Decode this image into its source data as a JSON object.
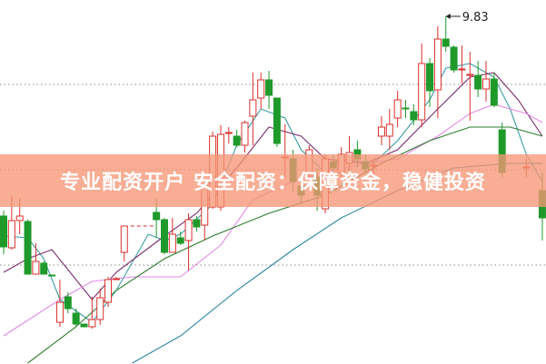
{
  "banner": {
    "text": "专业配资开户 安全配资：保障资金，稳健投资"
  },
  "chart_data": {
    "type": "candlestick",
    "title": "",
    "annotation": {
      "label": "9.83",
      "idx": 55,
      "price": 9.83
    },
    "grid": {
      "style": "dotted",
      "y_levels": [
        9.08,
        8.14,
        7.09
      ]
    },
    "ylim": [
      6.0,
      10.0
    ],
    "colors": {
      "up": "#d9302c",
      "down": "#1f9a2a",
      "ma5": "#3a9ea6",
      "ma10": "#7a2e6a",
      "ma20": "#e48ae4",
      "ma30": "#2d7d2d",
      "ma60": "#2a86a0"
    },
    "suspended_gap": [
      15,
      19
    ],
    "candles": [
      [
        0,
        7.63,
        7.29,
        7.69,
        7.21
      ],
      [
        1,
        7.28,
        7.58,
        7.86,
        7.26
      ],
      [
        2,
        7.58,
        7.63,
        7.83,
        7.43
      ],
      [
        3,
        7.57,
        6.99,
        7.59,
        6.99
      ],
      [
        4,
        6.99,
        7.13,
        7.33,
        6.99
      ],
      [
        5,
        7.11,
        6.99,
        7.13,
        6.99
      ],
      [
        6,
        6.98,
        6.975,
        6.98,
        6.97
      ],
      [
        7,
        6.46,
        6.68,
        6.93,
        6.41
      ],
      [
        8,
        6.74,
        6.61,
        6.79,
        6.56
      ],
      [
        9,
        6.56,
        6.44,
        6.61,
        6.41
      ],
      [
        10,
        6.44,
        6.41,
        6.44,
        6.41
      ],
      [
        11,
        6.41,
        6.49,
        6.74,
        6.39
      ],
      [
        12,
        6.49,
        6.73,
        6.83,
        6.43
      ],
      [
        13,
        6.68,
        6.93,
        6.96,
        6.63
      ],
      [
        14,
        6.93,
        6.94,
        6.96,
        6.93
      ],
      [
        15,
        7.23,
        7.52,
        7.52,
        7.13
      ],
      [
        19,
        7.67,
        7.59,
        7.83,
        7.39
      ],
      [
        20,
        7.59,
        7.23,
        7.61,
        7.21
      ],
      [
        21,
        7.23,
        7.43,
        7.61,
        7.23
      ],
      [
        22,
        7.39,
        7.33,
        7.46,
        7.31
      ],
      [
        23,
        7.36,
        7.59,
        7.66,
        7.03
      ],
      [
        24,
        7.59,
        7.51,
        7.63,
        7.46
      ],
      [
        25,
        7.53,
        7.96,
        7.96,
        7.36
      ],
      [
        26,
        7.73,
        8.51,
        8.56,
        7.71
      ],
      [
        27,
        7.73,
        8.53,
        8.63,
        7.69
      ],
      [
        28,
        8.54,
        8.55,
        8.61,
        8.43
      ],
      [
        29,
        8.51,
        8.41,
        8.58,
        8.39
      ],
      [
        30,
        8.41,
        8.66,
        8.68,
        8.33
      ],
      [
        31,
        8.73,
        8.91,
        9.21,
        8.41
      ],
      [
        32,
        8.93,
        9.13,
        9.21,
        8.81
      ],
      [
        33,
        9.13,
        8.96,
        9.23,
        8.81
      ],
      [
        34,
        8.93,
        8.43,
        8.93,
        8.39
      ],
      [
        35,
        8.27,
        8.28,
        8.64,
        8.06
      ],
      [
        36,
        8.26,
        8.01,
        8.36,
        7.89
      ],
      [
        37,
        7.96,
        7.86,
        8.06,
        7.76
      ],
      [
        38,
        8.09,
        8.36,
        8.41,
        8.01
      ],
      [
        39,
        8.06,
        7.86,
        8.16,
        7.69
      ],
      [
        40,
        7.71,
        8.26,
        8.31,
        7.66
      ],
      [
        41,
        8.23,
        8.16,
        8.31,
        8.13
      ],
      [
        42,
        8.11,
        8.31,
        8.39,
        8.06
      ],
      [
        43,
        8.21,
        8.33,
        8.51,
        8.13
      ],
      [
        44,
        8.36,
        8.26,
        8.46,
        8.16
      ],
      [
        45,
        8.23,
        8.15,
        8.31,
        8.09
      ],
      [
        46,
        8.18,
        8.19,
        8.26,
        8.09
      ],
      [
        47,
        8.51,
        8.61,
        8.73,
        8.41
      ],
      [
        48,
        8.51,
        8.64,
        8.81,
        8.36
      ],
      [
        49,
        8.71,
        8.91,
        9.01,
        8.61
      ],
      [
        50,
        8.82,
        8.81,
        8.91,
        8.71
      ],
      [
        51,
        8.78,
        8.69,
        8.86,
        8.63
      ],
      [
        52,
        8.69,
        9.31,
        9.53,
        8.61
      ],
      [
        53,
        9.31,
        9.01,
        9.37,
        8.83
      ],
      [
        54,
        9.02,
        9.58,
        9.72,
        8.71
      ],
      [
        55,
        9.58,
        9.5,
        9.83,
        9.44
      ],
      [
        56,
        9.49,
        9.24,
        9.51,
        9.21
      ],
      [
        57,
        9.24,
        9.25,
        9.51,
        9.09
      ],
      [
        58,
        9.18,
        9.19,
        9.44,
        8.68
      ],
      [
        59,
        9.18,
        9.03,
        9.34,
        8.94
      ],
      [
        60,
        9.03,
        9.14,
        9.34,
        8.89
      ],
      [
        61,
        9.14,
        8.85,
        9.21,
        8.83
      ],
      [
        62,
        8.58,
        8.11,
        8.66,
        8.06
      ],
      [
        65,
        8.16,
        8.17,
        8.26,
        8.06
      ],
      [
        67,
        7.91,
        7.61,
        8.11,
        7.36
      ]
    ],
    "moving_averages": [
      {
        "key": "ma5",
        "points": [
          [
            0,
            7.41
          ],
          [
            3,
            7.39
          ],
          [
            5,
            7.16
          ],
          [
            7,
            6.71
          ],
          [
            11,
            6.46
          ],
          [
            14,
            6.81
          ],
          [
            18,
            7.43
          ],
          [
            20,
            7.36
          ],
          [
            22,
            7.43
          ],
          [
            26,
            7.76
          ],
          [
            29,
            8.41
          ],
          [
            32,
            8.81
          ],
          [
            35,
            8.71
          ],
          [
            37,
            8.36
          ],
          [
            40,
            8.11
          ],
          [
            42,
            8.26
          ],
          [
            46,
            8.21
          ],
          [
            49,
            8.46
          ],
          [
            53,
            8.91
          ],
          [
            55,
            9.26
          ],
          [
            58,
            9.31
          ],
          [
            61,
            9.16
          ],
          [
            63,
            8.81
          ],
          [
            65,
            8.31
          ],
          [
            67,
            8.01
          ]
        ]
      },
      {
        "key": "ma10",
        "points": [
          [
            0,
            7.01
          ],
          [
            3,
            7.16
          ],
          [
            6,
            7.26
          ],
          [
            11,
            6.71
          ],
          [
            14,
            7.01
          ],
          [
            20,
            7.41
          ],
          [
            24,
            7.66
          ],
          [
            29,
            8.16
          ],
          [
            33,
            8.61
          ],
          [
            37,
            8.51
          ],
          [
            40,
            8.26
          ],
          [
            45,
            8.21
          ],
          [
            49,
            8.36
          ],
          [
            54,
            8.81
          ],
          [
            58,
            9.16
          ],
          [
            61,
            9.21
          ],
          [
            64,
            8.91
          ],
          [
            67,
            8.51
          ]
        ]
      },
      {
        "key": "ma20",
        "points": [
          [
            0,
            6.31
          ],
          [
            7,
            6.71
          ],
          [
            11,
            6.91
          ],
          [
            16,
            6.96
          ],
          [
            22,
            6.96
          ],
          [
            27,
            7.31
          ],
          [
            31,
            7.81
          ],
          [
            36,
            8.01
          ],
          [
            40,
            8.11
          ],
          [
            45,
            8.21
          ],
          [
            49,
            8.26
          ],
          [
            54,
            8.51
          ],
          [
            58,
            8.76
          ],
          [
            61,
            8.86
          ],
          [
            65,
            8.76
          ],
          [
            67,
            8.66
          ]
        ]
      },
      {
        "key": "ma30",
        "points": [
          [
            3,
            6.01
          ],
          [
            9,
            6.41
          ],
          [
            14,
            6.81
          ],
          [
            20,
            7.16
          ],
          [
            26,
            7.41
          ],
          [
            33,
            7.66
          ],
          [
            40,
            7.86
          ],
          [
            47,
            8.21
          ],
          [
            53,
            8.46
          ],
          [
            58,
            8.61
          ],
          [
            63,
            8.61
          ],
          [
            67,
            8.51
          ]
        ]
      },
      {
        "key": "ma60",
        "points": [
          [
            16,
            6.01
          ],
          [
            22,
            6.31
          ],
          [
            29,
            6.81
          ],
          [
            36,
            7.26
          ],
          [
            42,
            7.61
          ],
          [
            49,
            7.91
          ],
          [
            56,
            8.16
          ],
          [
            63,
            8.21
          ],
          [
            67,
            8.21
          ]
        ]
      }
    ]
  }
}
